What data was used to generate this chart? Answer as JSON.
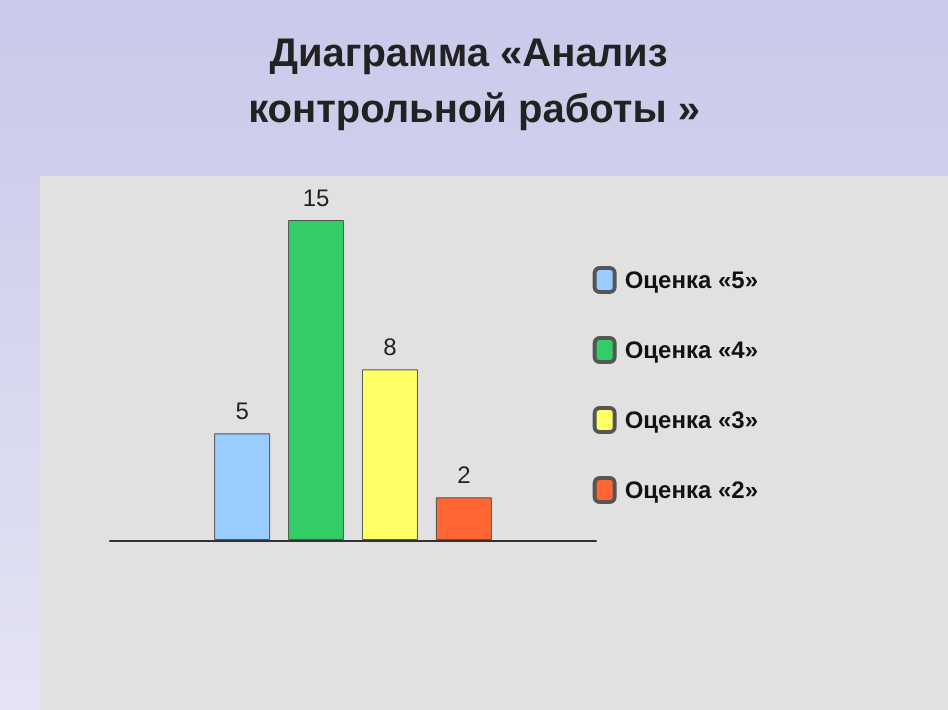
{
  "chart_data": {
    "type": "bar",
    "title": "Диаграмма «Анализ контрольной работы »",
    "categories": [
      null
    ],
    "series": [
      {
        "name": "Оценка «5»",
        "color": "#99ccff",
        "values": [
          5
        ]
      },
      {
        "name": "Оценка «4»",
        "color": "#33cc66",
        "values": [
          15
        ]
      },
      {
        "name": "Оценка «3»",
        "color": "#ffff66",
        "values": [
          8
        ]
      },
      {
        "name": "Оценка «2»",
        "color": "#ff6633",
        "values": [
          2
        ]
      }
    ],
    "data_labels": true,
    "legend": "right"
  }
}
